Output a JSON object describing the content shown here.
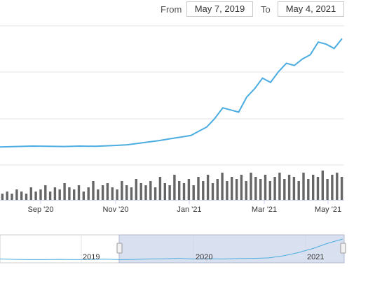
{
  "range_selector": {
    "from_label": "From",
    "from_value": "May 7, 2019",
    "to_label": "To",
    "to_value": "May 4, 2021"
  },
  "chart_data": {
    "type": "line",
    "x_tick_labels": [
      "Sep '20",
      "Nov '20",
      "Jan '21",
      "Mar '21",
      "May '21"
    ],
    "navigator_labels": [
      "2019",
      "2020",
      "2021"
    ],
    "grid": true,
    "colors": {
      "line": "#4cade0",
      "volume": "#666666",
      "navigator_mask": "#d0d8ec"
    },
    "price": {
      "x": [
        "2020-07-07",
        "2020-07-21",
        "2020-08-04",
        "2020-08-18",
        "2020-09-01",
        "2020-09-15",
        "2020-09-29",
        "2020-10-13",
        "2020-10-27",
        "2020-11-10",
        "2020-11-24",
        "2020-12-08",
        "2020-12-22",
        "2021-01-05",
        "2021-01-12",
        "2021-01-19",
        "2021-01-26",
        "2021-02-02",
        "2021-02-09",
        "2021-02-16",
        "2021-02-23",
        "2021-03-02",
        "2021-03-09",
        "2021-03-16",
        "2021-03-23",
        "2021-03-30",
        "2021-04-06",
        "2021-04-13",
        "2021-04-20",
        "2021-04-27",
        "2021-05-04"
      ],
      "values": [
        0.03,
        0.04,
        0.05,
        0.045,
        0.04,
        0.05,
        0.045,
        0.06,
        0.08,
        0.13,
        0.18,
        0.24,
        0.3,
        0.5,
        0.7,
        0.95,
        0.9,
        0.85,
        1.2,
        1.4,
        1.65,
        1.55,
        1.8,
        2.0,
        1.95,
        2.1,
        2.2,
        2.5,
        2.45,
        2.35,
        2.58
      ]
    },
    "volume": {
      "values": [
        3,
        4,
        3,
        5,
        4,
        3,
        6,
        4,
        5,
        7,
        4,
        6,
        5,
        8,
        6,
        5,
        7,
        4,
        6,
        9,
        5,
        7,
        8,
        6,
        5,
        9,
        7,
        6,
        10,
        8,
        7,
        9,
        6,
        11,
        8,
        7,
        12,
        9,
        8,
        10,
        7,
        11,
        9,
        12,
        8,
        10,
        13,
        9,
        11,
        10,
        12,
        9,
        13,
        11,
        10,
        12,
        9,
        11,
        13,
        10,
        12,
        11,
        9,
        13,
        10,
        12,
        11,
        14,
        10,
        12,
        13,
        11
      ]
    },
    "navigator": {
      "values": [
        0.05,
        0.03,
        0.02,
        0.02,
        0.03,
        0.02,
        0.03,
        0.04,
        0.02,
        0.03,
        0.05,
        0.06,
        0.08,
        0.05,
        0.06,
        0.05,
        0.07,
        0.08,
        0.1,
        0.2,
        0.35,
        0.55,
        0.8,
        1.0
      ]
    }
  }
}
